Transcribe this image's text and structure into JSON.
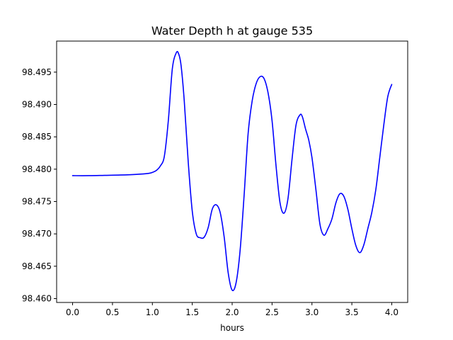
{
  "chart_data": {
    "type": "line",
    "title": "Water Depth h at gauge 535",
    "xlabel": "hours",
    "ylabel": "",
    "xlim": [
      -0.2,
      4.2
    ],
    "ylim": [
      98.4594,
      98.4998
    ],
    "xticks": [
      0.0,
      0.5,
      1.0,
      1.5,
      2.0,
      2.5,
      3.0,
      3.5,
      4.0
    ],
    "xtick_labels": [
      "0.0",
      "0.5",
      "1.0",
      "1.5",
      "2.0",
      "2.5",
      "3.0",
      "3.5",
      "4.0"
    ],
    "yticks": [
      98.46,
      98.465,
      98.47,
      98.475,
      98.48,
      98.485,
      98.49,
      98.495
    ],
    "ytick_labels": [
      "98.460",
      "98.465",
      "98.470",
      "98.475",
      "98.480",
      "98.485",
      "98.490",
      "98.495"
    ],
    "grid": false,
    "legend": "none",
    "series": [
      {
        "color": "#0000ff",
        "x": [
          0.0,
          0.2,
          0.4,
          0.6,
          0.8,
          0.95,
          1.0,
          1.05,
          1.1,
          1.15,
          1.2,
          1.25,
          1.3,
          1.33,
          1.36,
          1.4,
          1.45,
          1.5,
          1.55,
          1.6,
          1.65,
          1.7,
          1.75,
          1.8,
          1.85,
          1.9,
          1.95,
          2.0,
          2.05,
          2.1,
          2.15,
          2.2,
          2.25,
          2.3,
          2.35,
          2.4,
          2.45,
          2.5,
          2.55,
          2.6,
          2.65,
          2.7,
          2.75,
          2.8,
          2.85,
          2.88,
          2.92,
          2.96,
          3.0,
          3.05,
          3.1,
          3.15,
          3.2,
          3.25,
          3.3,
          3.35,
          3.4,
          3.45,
          3.5,
          3.55,
          3.6,
          3.65,
          3.7,
          3.75,
          3.8,
          3.85,
          3.9,
          3.95,
          4.0
        ],
        "y": [
          98.479,
          98.479,
          98.47905,
          98.4791,
          98.4792,
          98.47935,
          98.4795,
          98.4798,
          98.4805,
          98.482,
          98.4875,
          98.4955,
          98.498,
          98.4978,
          98.496,
          98.4905,
          98.481,
          98.4735,
          98.47,
          98.4694,
          98.4695,
          98.471,
          98.4738,
          98.4745,
          98.4733,
          98.4695,
          98.464,
          98.4613,
          98.4625,
          98.4675,
          98.476,
          98.4855,
          98.4905,
          98.4932,
          98.4943,
          98.494,
          98.4918,
          98.4875,
          98.4805,
          98.4748,
          98.4732,
          98.4755,
          98.4815,
          98.4868,
          98.4884,
          98.4881,
          98.4862,
          98.4845,
          98.4818,
          98.4768,
          98.4715,
          98.4698,
          98.4708,
          98.4723,
          98.4748,
          98.4762,
          98.4758,
          98.4738,
          98.4708,
          98.4682,
          98.4671,
          98.4683,
          98.4708,
          98.4733,
          98.4768,
          98.4818,
          98.4868,
          98.4912,
          98.4931
        ]
      }
    ]
  }
}
